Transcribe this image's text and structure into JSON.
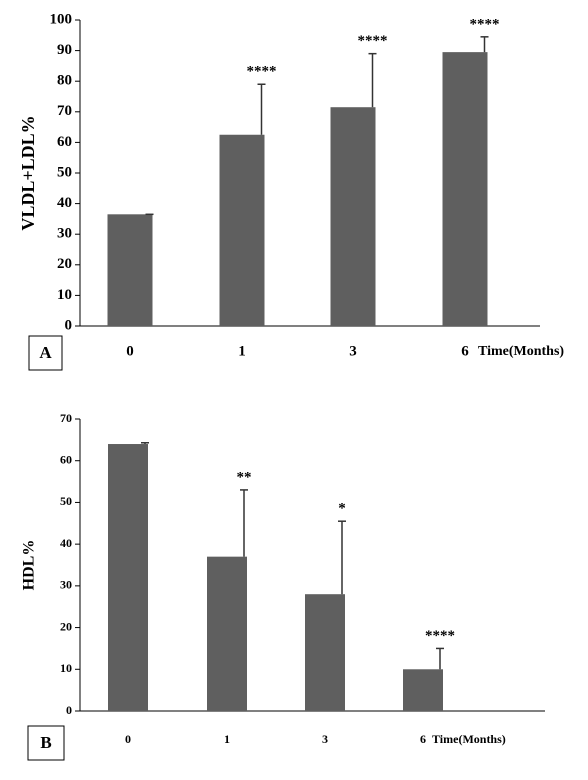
{
  "chart_data": [
    {
      "type": "bar",
      "panel": "A",
      "ylabel": "VLDL+LDL%",
      "xlabel": "Time(Months)",
      "categories": [
        "0",
        "1",
        "3",
        "6"
      ],
      "values": [
        36.5,
        62.5,
        71.5,
        89.5
      ],
      "errors": [
        0,
        16.5,
        17.5,
        5
      ],
      "annotations": [
        null,
        "****",
        "****",
        "****"
      ],
      "color": "#5f5f5f",
      "ylim": [
        0,
        100
      ],
      "yticks": [
        0,
        10,
        20,
        30,
        40,
        50,
        60,
        70,
        80,
        90,
        100
      ]
    },
    {
      "type": "bar",
      "panel": "B",
      "ylabel": "HDL%",
      "xlabel": "Time(Months)",
      "categories": [
        "0",
        "1",
        "3",
        "6"
      ],
      "values": [
        64,
        37,
        28,
        10
      ],
      "errors": [
        0.3,
        16,
        17.5,
        5
      ],
      "annotations": [
        null,
        "**",
        "*",
        "****"
      ],
      "color": "#5f5f5f",
      "ylim": [
        0,
        70
      ],
      "yticks": [
        0,
        10,
        20,
        30,
        40,
        50,
        60,
        70
      ]
    }
  ]
}
